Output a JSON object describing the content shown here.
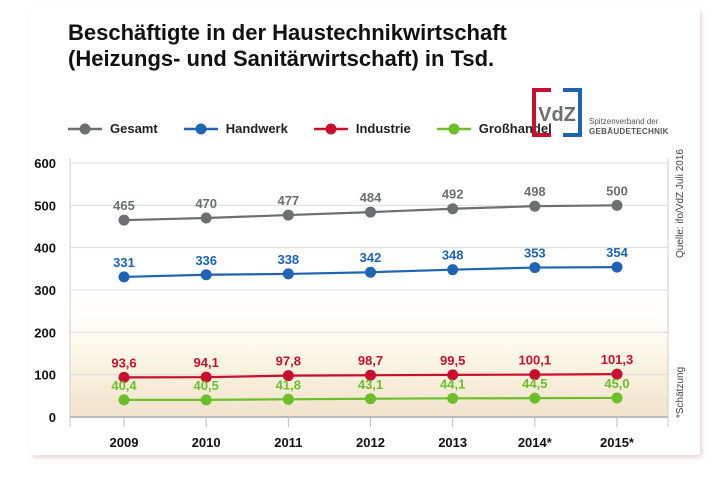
{
  "title": "Beschäftigte in der Haustechnikwirtschaft (Heizungs- und Sanitärwirtschaft) in Tsd.",
  "logo": {
    "text": "VdZ",
    "line1": "Spitzenverband der",
    "line2": "GEBÄUDETECHNIK"
  },
  "source": "Quelle: ifo/VdZ Juli 2016",
  "footnote": "*Schätzung",
  "chart_data": {
    "type": "line",
    "title": "Beschäftigte in der Haustechnikwirtschaft (Heizungs- und Sanitärwirtschaft) in Tsd.",
    "categories": [
      "2009",
      "2010",
      "2011",
      "2012",
      "2013",
      "2014*",
      "2015*"
    ],
    "ylim": [
      0,
      600
    ],
    "yticks": [
      0,
      100,
      200,
      300,
      400,
      500,
      600
    ],
    "grid": true,
    "legend": "top",
    "series": [
      {
        "name": "Gesamt",
        "color": "#6d6e70",
        "values": [
          465,
          470,
          477,
          484,
          492,
          498,
          500
        ],
        "labels": [
          "465",
          "470",
          "477",
          "484",
          "492",
          "498",
          "500"
        ]
      },
      {
        "name": "Handwerk",
        "color": "#1f63b5",
        "values": [
          331,
          336,
          338,
          342,
          348,
          353,
          354
        ],
        "labels": [
          "331",
          "336",
          "338",
          "342",
          "348",
          "353",
          "354"
        ]
      },
      {
        "name": "Industrie",
        "color": "#c8102e",
        "values": [
          93.6,
          94.1,
          97.8,
          98.7,
          99.5,
          100.1,
          101.3
        ],
        "labels": [
          "93,6",
          "94,1",
          "97,8",
          "98,7",
          "99,5",
          "100,1",
          "101,3"
        ]
      },
      {
        "name": "Großhandel",
        "color": "#6cbf2a",
        "values": [
          40.4,
          40.5,
          41.8,
          43.1,
          44.1,
          44.5,
          45.0
        ],
        "labels": [
          "40,4",
          "40,5",
          "41,8",
          "43,1",
          "44,1",
          "44,5",
          "45,0"
        ]
      }
    ]
  }
}
